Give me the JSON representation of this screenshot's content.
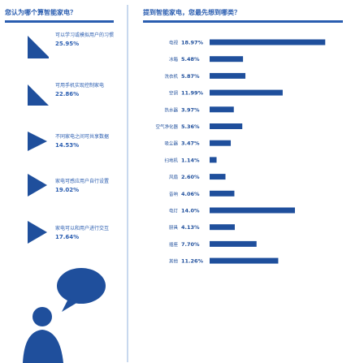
{
  "left": {
    "title": "您认为哪个算智能家电？",
    "items": [
      {
        "text": "可以学习或模拟用户的习惯",
        "pct": "25.95%"
      },
      {
        "text": "可用手机实现控制家电",
        "pct": "22.86%"
      },
      {
        "text": "不同家电之间可共享数据",
        "pct": "14.53%"
      },
      {
        "text": "家电可感应用户自行设置",
        "pct": "19.02%"
      },
      {
        "text": "家电可以和用户进行交互",
        "pct": "17.64%"
      }
    ]
  },
  "chart_data": {
    "type": "bar",
    "orientation": "horizontal",
    "title": "提到智能家电，您最先想到哪类？",
    "categories": [
      "电视",
      "冰箱",
      "洗衣机",
      "空调",
      "热水器",
      "空气净化器",
      "吸尘器",
      "扫地机",
      "风扇",
      "音响",
      "电灯",
      "厨具",
      "插座",
      "其他"
    ],
    "values": [
      18.97,
      5.48,
      5.87,
      11.99,
      3.97,
      5.36,
      3.47,
      1.14,
      2.6,
      4.06,
      14.0,
      4.13,
      7.7,
      11.26
    ],
    "value_labels": [
      "18.97%",
      "5.48%",
      "5.87%",
      "11.99%",
      "3.97%",
      "5.36%",
      "3.47%",
      "1.14%",
      "2.60%",
      "4.06%",
      "14.0%",
      "4.13%",
      "7.70%",
      "11.26%"
    ],
    "xlim": [
      0,
      20
    ],
    "bar_color": "#1f4f9c",
    "grid": false
  },
  "colors": {
    "accent": "#2a5db0",
    "dark": "#1f4f9c",
    "divider": "#c8d8ee"
  }
}
